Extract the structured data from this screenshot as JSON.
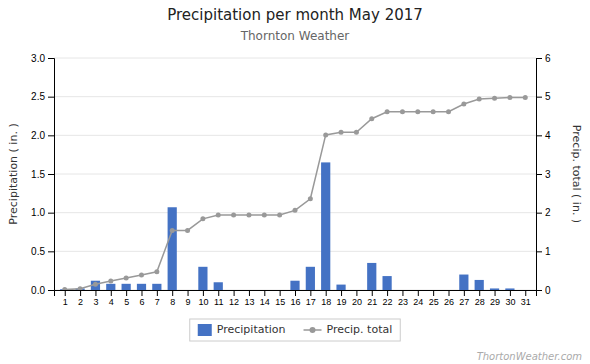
{
  "chart_data": {
    "type": "bar",
    "title": "Precipitation per month May 2017",
    "subtitle": "Thornton Weather",
    "annotations": [
      "ThortonWeather.com"
    ],
    "ylabel": "Precipitation ( in. )",
    "y2label": "Precip. total ( in. )",
    "x": [
      1,
      2,
      3,
      4,
      5,
      6,
      7,
      8,
      9,
      10,
      11,
      12,
      13,
      14,
      15,
      16,
      17,
      18,
      19,
      20,
      21,
      22,
      23,
      24,
      25,
      26,
      27,
      28,
      29,
      30,
      31
    ],
    "xlim": [
      0.3,
      31.7
    ],
    "xticks": [
      1,
      2,
      3,
      4,
      5,
      6,
      7,
      8,
      9,
      10,
      11,
      12,
      13,
      14,
      15,
      16,
      17,
      18,
      19,
      20,
      21,
      22,
      23,
      24,
      25,
      26,
      27,
      28,
      29,
      30,
      31
    ],
    "ylim": [
      0,
      3
    ],
    "yticks": [
      {
        "value": 0,
        "label": "0.0"
      },
      0.5,
      {
        "value": 1.0,
        "label": "1.0"
      },
      1.5,
      {
        "value": 2.0,
        "label": "2.0"
      },
      2.5,
      {
        "value": 3.0,
        "label": "3.0"
      }
    ],
    "y2lim": [
      0,
      6
    ],
    "y2ticks": [
      0,
      1,
      2,
      3,
      4,
      5,
      6
    ],
    "grid": true,
    "legend": "bottom",
    "series": [
      {
        "name": "Precipitation",
        "type": "bar",
        "color": "#4472c4",
        "values": [
          0.01,
          0.02,
          0.12,
          0.08,
          0.08,
          0.08,
          0.08,
          1.07,
          0.0,
          0.3,
          0.1,
          0.0,
          0.0,
          0.0,
          0.0,
          0.12,
          0.3,
          1.65,
          0.07,
          0.0,
          0.35,
          0.18,
          0.0,
          0.0,
          0.0,
          0.0,
          0.2,
          0.13,
          0.02,
          0.02,
          0.0
        ]
      },
      {
        "name": "Precip. total",
        "type": "line",
        "axis": "y2",
        "color": "#999999",
        "marker": "circle",
        "values": [
          0.01,
          0.03,
          0.15,
          0.23,
          0.31,
          0.39,
          0.47,
          1.54,
          1.54,
          1.84,
          1.94,
          1.94,
          1.94,
          1.94,
          1.94,
          2.06,
          2.36,
          4.01,
          4.08,
          4.08,
          4.43,
          4.61,
          4.61,
          4.61,
          4.61,
          4.61,
          4.81,
          4.94,
          4.96,
          4.98,
          4.98
        ]
      }
    ]
  }
}
